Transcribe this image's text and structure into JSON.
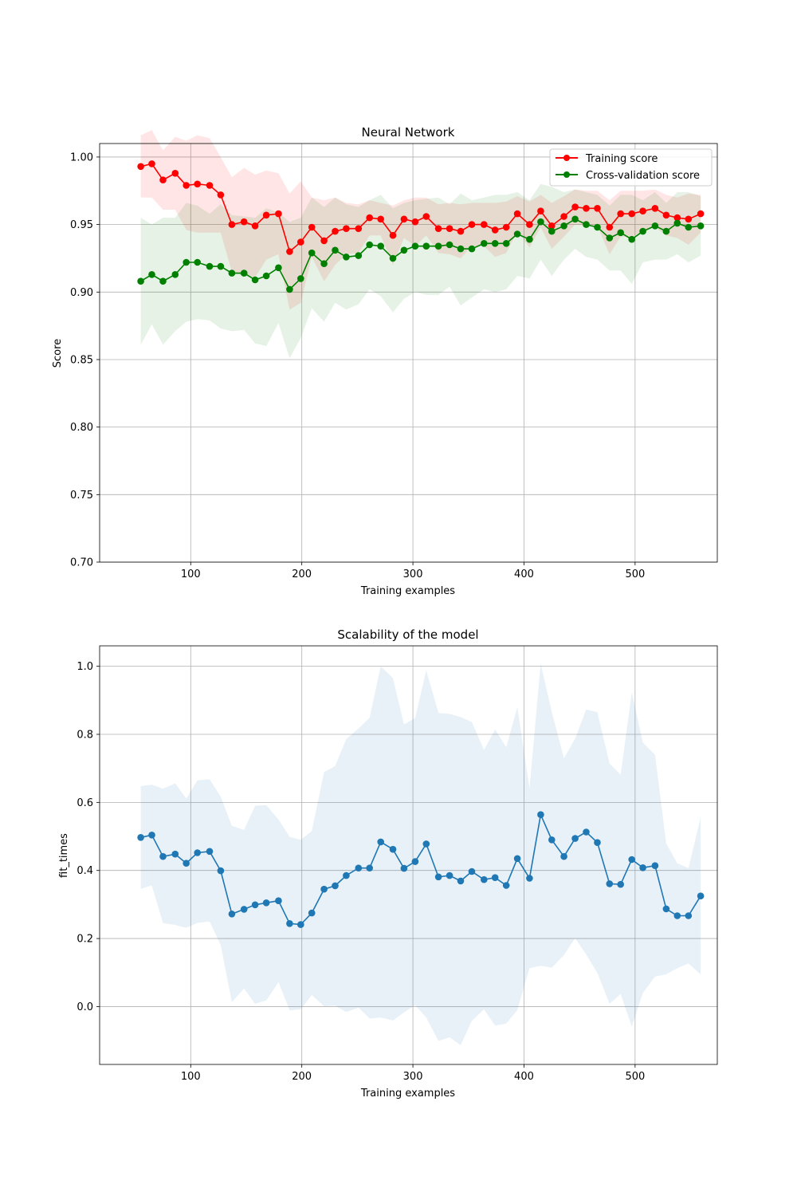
{
  "chart_data": [
    {
      "type": "line",
      "title": "Neural Network",
      "xlabel": "Training examples",
      "ylabel": "Score",
      "xlim": [
        18,
        574
      ],
      "ylim": [
        0.7,
        1.01
      ],
      "xticks": [
        100,
        200,
        300,
        400,
        500
      ],
      "yticks": [
        0.7,
        0.75,
        0.8,
        0.85,
        0.9,
        0.95,
        1.0
      ],
      "ytick_format": 2,
      "grid": true,
      "legend": "top-right",
      "x": [
        55,
        65,
        75,
        86,
        96,
        106,
        117,
        127,
        137,
        148,
        158,
        168,
        179,
        189,
        199,
        209,
        220,
        230,
        240,
        251,
        261,
        271,
        282,
        292,
        302,
        312,
        323,
        333,
        343,
        353,
        364,
        374,
        384,
        394,
        405,
        415,
        425,
        436,
        446,
        456,
        466,
        477,
        487,
        497,
        507,
        518,
        528,
        538,
        548,
        559
      ],
      "series": [
        {
          "name": "Training score",
          "color": "#ff0000",
          "values": [
            0.993,
            0.995,
            0.983,
            0.988,
            0.979,
            0.98,
            0.979,
            0.972,
            0.95,
            0.952,
            0.949,
            0.957,
            0.958,
            0.93,
            0.937,
            0.948,
            0.938,
            0.945,
            0.947,
            0.947,
            0.955,
            0.954,
            0.942,
            0.954,
            0.952,
            0.956,
            0.947,
            0.947,
            0.945,
            0.95,
            0.95,
            0.946,
            0.948,
            0.958,
            0.95,
            0.96,
            0.949,
            0.956,
            0.963,
            0.962,
            0.962,
            0.948,
            0.958,
            0.958,
            0.96,
            0.962,
            0.957,
            0.955,
            0.954,
            0.958
          ],
          "upper": [
            1.016,
            1.02,
            1.005,
            1.015,
            1.012,
            1.016,
            1.014,
            1.0,
            0.985,
            0.992,
            0.987,
            0.99,
            0.988,
            0.973,
            0.982,
            0.97,
            0.968,
            0.97,
            0.966,
            0.965,
            0.968,
            0.966,
            0.964,
            0.968,
            0.97,
            0.97,
            0.965,
            0.966,
            0.965,
            0.966,
            0.966,
            0.966,
            0.967,
            0.971,
            0.967,
            0.972,
            0.966,
            0.971,
            0.976,
            0.975,
            0.975,
            0.968,
            0.975,
            0.975,
            0.975,
            0.976,
            0.972,
            0.97,
            0.973,
            0.972
          ],
          "lower": [
            0.97,
            0.97,
            0.961,
            0.961,
            0.946,
            0.944,
            0.944,
            0.944,
            0.915,
            0.912,
            0.911,
            0.924,
            0.928,
            0.887,
            0.892,
            0.926,
            0.908,
            0.92,
            0.928,
            0.929,
            0.942,
            0.942,
            0.92,
            0.94,
            0.934,
            0.942,
            0.929,
            0.928,
            0.925,
            0.934,
            0.934,
            0.926,
            0.929,
            0.945,
            0.933,
            0.948,
            0.932,
            0.941,
            0.95,
            0.949,
            0.949,
            0.928,
            0.941,
            0.941,
            0.945,
            0.948,
            0.942,
            0.94,
            0.935,
            0.944
          ]
        },
        {
          "name": "Cross-validation score",
          "color": "#008000",
          "values": [
            0.908,
            0.913,
            0.908,
            0.913,
            0.922,
            0.922,
            0.919,
            0.919,
            0.914,
            0.914,
            0.909,
            0.912,
            0.918,
            0.902,
            0.91,
            0.929,
            0.921,
            0.931,
            0.926,
            0.927,
            0.935,
            0.934,
            0.925,
            0.931,
            0.934,
            0.934,
            0.934,
            0.935,
            0.932,
            0.932,
            0.936,
            0.936,
            0.936,
            0.943,
            0.939,
            0.952,
            0.945,
            0.949,
            0.954,
            0.95,
            0.948,
            0.94,
            0.944,
            0.939,
            0.945,
            0.949,
            0.945,
            0.951,
            0.948,
            0.949
          ],
          "upper": [
            0.955,
            0.95,
            0.955,
            0.955,
            0.966,
            0.964,
            0.958,
            0.965,
            0.957,
            0.956,
            0.955,
            0.962,
            0.959,
            0.952,
            0.955,
            0.97,
            0.963,
            0.97,
            0.965,
            0.963,
            0.968,
            0.972,
            0.962,
            0.966,
            0.968,
            0.969,
            0.97,
            0.965,
            0.973,
            0.968,
            0.97,
            0.972,
            0.972,
            0.974,
            0.968,
            0.98,
            0.978,
            0.974,
            0.976,
            0.974,
            0.972,
            0.964,
            0.972,
            0.972,
            0.968,
            0.974,
            0.966,
            0.974,
            0.974,
            0.971
          ],
          "lower": [
            0.861,
            0.876,
            0.861,
            0.871,
            0.878,
            0.88,
            0.879,
            0.873,
            0.871,
            0.872,
            0.862,
            0.86,
            0.877,
            0.851,
            0.866,
            0.888,
            0.878,
            0.892,
            0.887,
            0.891,
            0.902,
            0.897,
            0.885,
            0.895,
            0.9,
            0.898,
            0.898,
            0.904,
            0.89,
            0.896,
            0.902,
            0.9,
            0.902,
            0.912,
            0.91,
            0.924,
            0.912,
            0.924,
            0.932,
            0.926,
            0.924,
            0.916,
            0.916,
            0.906,
            0.922,
            0.924,
            0.924,
            0.928,
            0.922,
            0.927
          ]
        }
      ]
    },
    {
      "type": "line",
      "title": "Scalability of the model",
      "xlabel": "Training examples",
      "ylabel": "fit_times",
      "xlim": [
        18,
        574
      ],
      "ylim": [
        -0.17,
        1.06
      ],
      "xticks": [
        100,
        200,
        300,
        400,
        500
      ],
      "yticks": [
        0.0,
        0.2,
        0.4,
        0.6,
        0.8,
        1.0
      ],
      "ytick_format": 1,
      "grid": true,
      "x": [
        55,
        65,
        75,
        86,
        96,
        106,
        117,
        127,
        137,
        148,
        158,
        168,
        179,
        189,
        199,
        209,
        220,
        230,
        240,
        251,
        261,
        271,
        282,
        292,
        302,
        312,
        323,
        333,
        343,
        353,
        364,
        374,
        384,
        394,
        405,
        415,
        425,
        436,
        446,
        456,
        466,
        477,
        487,
        497,
        507,
        518,
        528,
        538,
        548,
        559
      ],
      "series": [
        {
          "color": "#1f77b4",
          "values": [
            0.497,
            0.504,
            0.441,
            0.448,
            0.421,
            0.452,
            0.456,
            0.399,
            0.272,
            0.286,
            0.299,
            0.305,
            0.311,
            0.244,
            0.241,
            0.275,
            0.345,
            0.355,
            0.385,
            0.407,
            0.407,
            0.484,
            0.462,
            0.406,
            0.426,
            0.478,
            0.381,
            0.385,
            0.369,
            0.397,
            0.373,
            0.379,
            0.356,
            0.435,
            0.377,
            0.564,
            0.49,
            0.441,
            0.494,
            0.513,
            0.482,
            0.361,
            0.359,
            0.432,
            0.408,
            0.414,
            0.287,
            0.267,
            0.267,
            0.325
          ],
          "upper": [
            0.648,
            0.652,
            0.64,
            0.656,
            0.611,
            0.665,
            0.668,
            0.617,
            0.531,
            0.519,
            0.59,
            0.592,
            0.55,
            0.499,
            0.49,
            0.516,
            0.689,
            0.707,
            0.786,
            0.817,
            0.849,
            1.0,
            0.965,
            0.829,
            0.848,
            0.988,
            0.863,
            0.86,
            0.851,
            0.836,
            0.754,
            0.814,
            0.762,
            0.88,
            0.641,
            1.008,
            0.866,
            0.73,
            0.787,
            0.873,
            0.865,
            0.714,
            0.681,
            0.923,
            0.776,
            0.74,
            0.479,
            0.421,
            0.407,
            0.556
          ],
          "lower": [
            0.346,
            0.356,
            0.245,
            0.24,
            0.231,
            0.246,
            0.25,
            0.181,
            0.013,
            0.053,
            0.008,
            0.018,
            0.072,
            -0.011,
            -0.008,
            0.034,
            0.001,
            0.003,
            -0.016,
            -0.003,
            -0.035,
            -0.032,
            -0.041,
            -0.017,
            0.004,
            -0.032,
            -0.101,
            -0.09,
            -0.113,
            -0.042,
            -0.008,
            -0.056,
            -0.05,
            -0.01,
            0.113,
            0.12,
            0.114,
            0.152,
            0.201,
            0.153,
            0.099,
            0.008,
            0.037,
            -0.059,
            0.04,
            0.088,
            0.095,
            0.113,
            0.127,
            0.094
          ]
        }
      ]
    }
  ]
}
